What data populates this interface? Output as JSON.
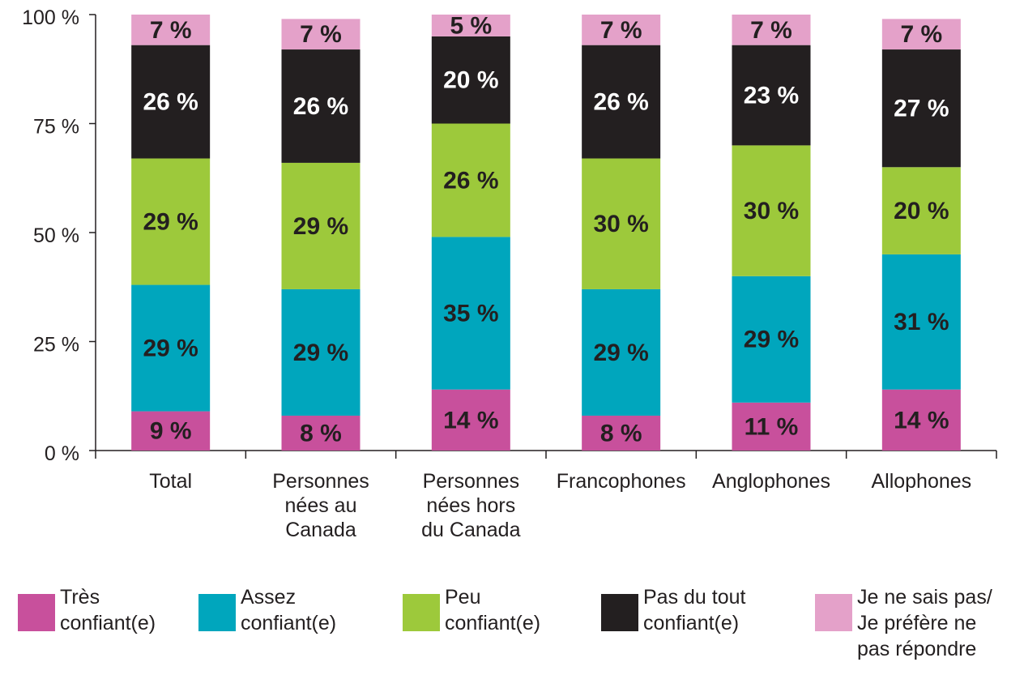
{
  "chart_data": {
    "type": "stacked_bar",
    "categories": [
      "Total",
      "Personnes\nnées au\nCanada",
      "Personnes\nnées hors\ndu Canada",
      "Francophones",
      "Anglophones",
      "Allophones"
    ],
    "series": [
      {
        "name": "Très\nconfiant(e)",
        "color": "#c8509c",
        "values": [
          9,
          8,
          14,
          8,
          11,
          14
        ],
        "value_labels": [
          "9 %",
          "8 %",
          "14 %",
          "8 %",
          "11 %",
          "14 %"
        ]
      },
      {
        "name": "Assez\nconfiant(e)",
        "color": "#00a6bd",
        "values": [
          29,
          29,
          35,
          29,
          29,
          31
        ],
        "value_labels": [
          "29 %",
          "29 %",
          "35 %",
          "29 %",
          "29 %",
          "31 %"
        ]
      },
      {
        "name": "Peu\nconfiant(e)",
        "color": "#9dc93b",
        "values": [
          29,
          29,
          26,
          30,
          30,
          20
        ],
        "value_labels": [
          "29 %",
          "29 %",
          "26 %",
          "30 %",
          "30 %",
          "20 %"
        ]
      },
      {
        "name": "Pas du tout\nconfiant(e)",
        "color": "#231f20",
        "values": [
          26,
          26,
          20,
          26,
          23,
          27
        ],
        "value_labels": [
          "26 %",
          "26 %",
          "20 %",
          "26 %",
          "23 %",
          "27 %"
        ]
      },
      {
        "name": "Je ne sais pas/\nJe préfère ne\npas répondre",
        "color": "#e4a1c9",
        "values": [
          7,
          7,
          5,
          7,
          7,
          7
        ],
        "value_labels": [
          "7 %",
          "7 %",
          "5 %",
          "7 %",
          "7 %",
          "7 %"
        ]
      }
    ],
    "ylim": [
      0,
      100
    ],
    "yticks": [
      {
        "value": 0,
        "label": "0 %"
      },
      {
        "value": 25,
        "label": "25 %"
      },
      {
        "value": 50,
        "label": "50 %"
      },
      {
        "value": 75,
        "label": "75 %"
      },
      {
        "value": 100,
        "label": "100 %"
      }
    ]
  }
}
